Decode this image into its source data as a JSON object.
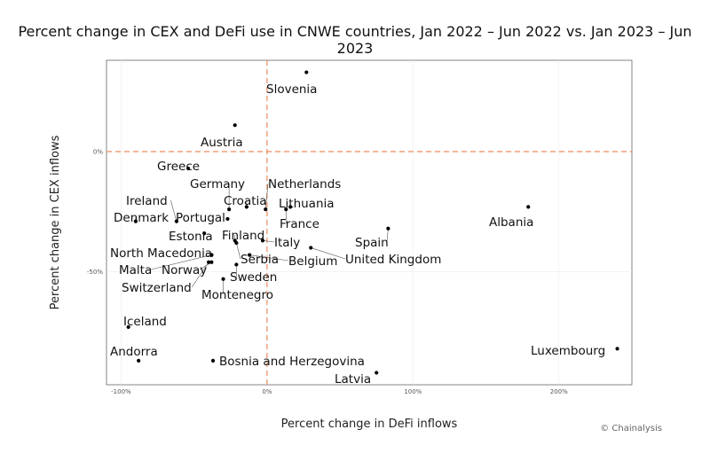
{
  "chart_data": {
    "type": "scatter",
    "title": "Percent change in CEX and DeFi use in CNWE countries, Jan 2022 – Jun 2022 vs. Jan 2023 – Jun 2023",
    "xlabel": "Percent change in DeFi inflows",
    "ylabel": "Percent change in CEX inflows",
    "xlim": [
      -110,
      250
    ],
    "ylim": [
      -97,
      38
    ],
    "x_ticks": [
      -100,
      0,
      100,
      200
    ],
    "x_tick_labels": [
      "-100%",
      "0%",
      "100%",
      "200%"
    ],
    "y_ticks": [
      0,
      -50
    ],
    "y_tick_labels": [
      "0%",
      "-50%"
    ],
    "reference_lines": {
      "x": 0,
      "y": 0,
      "color": "#f08a5d",
      "style": "dashed"
    },
    "grid": true,
    "points": [
      {
        "name": "Slovenia",
        "x": 27,
        "y": 33
      },
      {
        "name": "Austria",
        "x": -22,
        "y": 11
      },
      {
        "name": "Greece",
        "x": -54,
        "y": -7
      },
      {
        "name": "Germany",
        "x": -26,
        "y": -24
      },
      {
        "name": "Netherlands",
        "x": -1,
        "y": -24
      },
      {
        "name": "Croatia",
        "x": -14,
        "y": -23
      },
      {
        "name": "Lithuania",
        "x": 16,
        "y": -23
      },
      {
        "name": "France",
        "x": 13,
        "y": -24
      },
      {
        "name": "Ireland",
        "x": -62,
        "y": -29
      },
      {
        "name": "Portugal",
        "x": -27,
        "y": -28
      },
      {
        "name": "Denmark",
        "x": -90,
        "y": -29
      },
      {
        "name": "Estonia",
        "x": -43,
        "y": -34
      },
      {
        "name": "Finland",
        "x": -22,
        "y": -37
      },
      {
        "name": "Italy",
        "x": -3,
        "y": -37
      },
      {
        "name": "Spain",
        "x": 83,
        "y": -32
      },
      {
        "name": "Albania",
        "x": 179,
        "y": -23
      },
      {
        "name": "North Macedonia",
        "x": -38,
        "y": -43
      },
      {
        "name": "Serbia",
        "x": -21,
        "y": -38
      },
      {
        "name": "Belgium",
        "x": -12,
        "y": -43
      },
      {
        "name": "United Kingdom",
        "x": 30,
        "y": -40
      },
      {
        "name": "Malta",
        "x": -38,
        "y": -43
      },
      {
        "name": "Norway",
        "x": -38,
        "y": -46
      },
      {
        "name": "Switzerland",
        "x": -40,
        "y": -46
      },
      {
        "name": "Sweden",
        "x": -21,
        "y": -47
      },
      {
        "name": "Montenegro",
        "x": -30,
        "y": -53
      },
      {
        "name": "Iceland",
        "x": -95,
        "y": -73
      },
      {
        "name": "Andorra",
        "x": -88,
        "y": -87
      },
      {
        "name": "Bosnia and Herzegovina",
        "x": -37,
        "y": -87
      },
      {
        "name": "Latvia",
        "x": 75,
        "y": -92
      },
      {
        "name": "Luxembourg",
        "x": 240,
        "y": -82
      }
    ]
  },
  "credit": "© Chainalysis"
}
